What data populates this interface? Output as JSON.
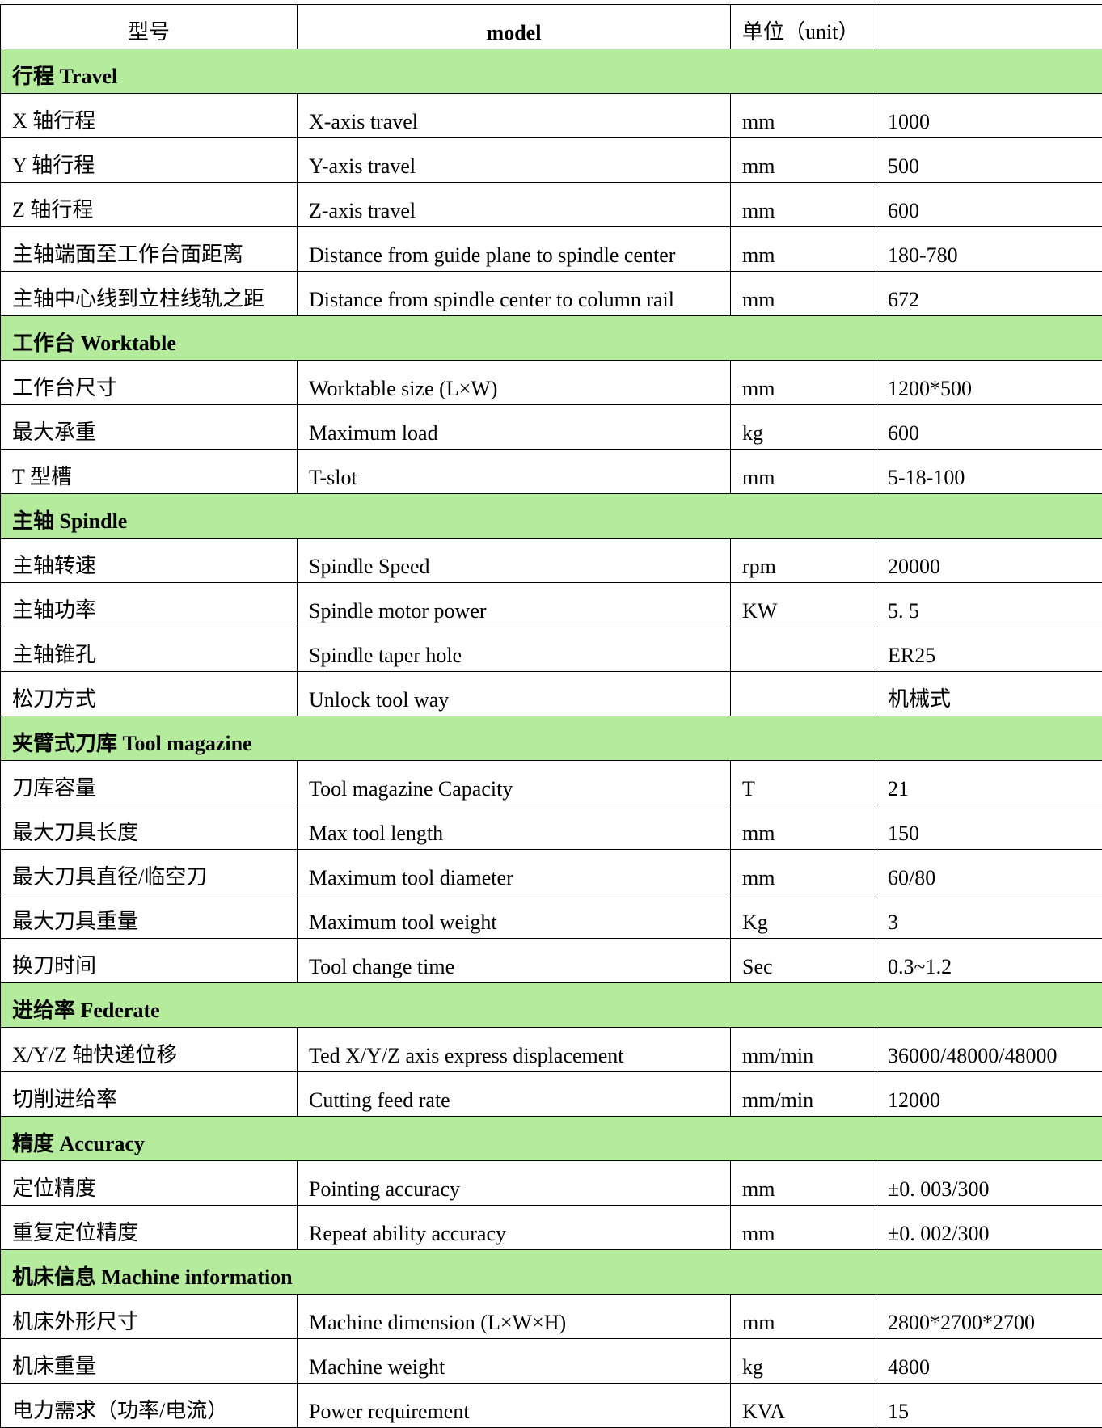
{
  "header": {
    "col_cn": "型号",
    "col_model": "model",
    "col_unit": "单位（unit）",
    "col_value": ""
  },
  "sections": [
    {
      "title": "行程 Travel",
      "rows": [
        {
          "cn": "X 轴行程",
          "en": "X-axis travel",
          "unit": "mm",
          "value": "1000"
        },
        {
          "cn": "Y 轴行程",
          "en": "Y-axis travel",
          "unit": "mm",
          "value": "500"
        },
        {
          "cn": "Z 轴行程",
          "en": "Z-axis travel",
          "unit": "mm",
          "value": "600"
        },
        {
          "cn": "主轴端面至工作台面距离",
          "en": "Distance from guide plane to spindle center",
          "unit": "mm",
          "value": "180-780"
        },
        {
          "cn": "主轴中心线到立柱线轨之距",
          "en": "Distance from spindle center to column rail",
          "unit": "mm",
          "value": "672"
        }
      ]
    },
    {
      "title": "工作台 Worktable",
      "rows": [
        {
          "cn": "工作台尺寸",
          "en": "Worktable size (L×W)",
          "unit": "mm",
          "value": "1200*500"
        },
        {
          "cn": "最大承重",
          "en": "Maximum load",
          "unit": " kg",
          "value": "600"
        },
        {
          "cn": "T 型槽",
          "en": "T-slot",
          "unit": "mm",
          "value": "5-18-100"
        }
      ]
    },
    {
      "title": "主轴 Spindle",
      "rows": [
        {
          "cn": "主轴转速",
          "en": "Spindle Speed",
          "unit": "rpm",
          "value": "20000"
        },
        {
          "cn": "主轴功率",
          "en": "Spindle motor power",
          "unit": "KW",
          "value": "5. 5"
        },
        {
          "cn": "主轴锥孔",
          "en": "Spindle taper hole",
          "unit": "",
          "value": "ER25"
        },
        {
          "cn": "松刀方式",
          "en": "Unlock tool way",
          "unit": "",
          "value": "机械式"
        }
      ]
    },
    {
      "title": "夹臂式刀库 Tool magazine",
      "rows": [
        {
          "cn": "刀库容量",
          "en": "Tool magazine Capacity",
          "unit": "T",
          "value": "21"
        },
        {
          "cn": "最大刀具长度",
          "en": "Max tool length",
          "unit": "mm",
          "value": "150"
        },
        {
          "cn": "最大刀具直径/临空刀",
          "en": "Maximum tool diameter",
          "unit": "mm",
          "value": "60/80"
        },
        {
          "cn": "最大刀具重量",
          "en": "Maximum tool weight",
          "unit": "Kg",
          "value": "3"
        },
        {
          "cn": "换刀时间",
          "en": "Tool change time",
          "unit": "Sec",
          "value": "0.3~1.2"
        }
      ]
    },
    {
      "title": "进给率 Federate",
      "rows": [
        {
          "cn": "X/Y/Z 轴快递位移",
          "en": "Ted X/Y/Z axis express displacement",
          "unit": "mm/min",
          "value": "36000/48000/48000"
        },
        {
          "cn": "切削进给率",
          "en": "Cutting feed rate",
          "unit": "mm/min",
          "value": "12000"
        }
      ]
    },
    {
      "title": "精度 Accuracy",
      "rows": [
        {
          "cn": "定位精度",
          "en": "Pointing accuracy",
          "unit": "mm",
          "value": "±0. 003/300"
        },
        {
          "cn": "重复定位精度",
          "en": "Repeat ability accuracy",
          "unit": "mm",
          "value": "±0. 002/300"
        }
      ]
    },
    {
      "title": "机床信息 Machine information",
      "rows": [
        {
          "cn": "机床外形尺寸",
          "en": "Machine dimension (L×W×H)",
          "unit": "mm",
          "value": "2800*2700*2700"
        },
        {
          "cn": "机床重量",
          "en": "Machine weight",
          "unit": "kg",
          "value": "4800"
        },
        {
          "cn": "电力需求（功率/电流）",
          "en": "Power requirement",
          "unit": "KVA",
          "value": "15"
        }
      ]
    }
  ],
  "colors": {
    "section_bg": "#b5eb9c",
    "border": "#000000"
  }
}
